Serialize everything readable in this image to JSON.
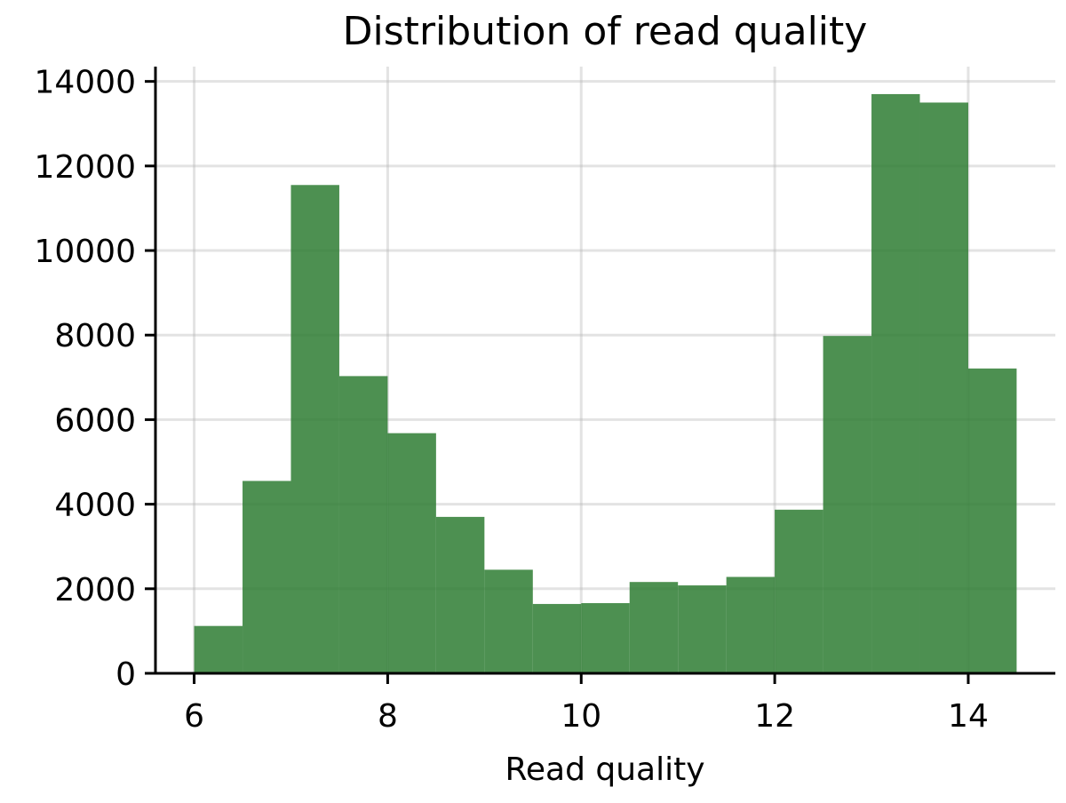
{
  "chart_data": {
    "type": "bar",
    "title": "Distribution of read quality",
    "xlabel": "Read quality",
    "ylabel": "",
    "bin_width": 0.5,
    "bins": [
      {
        "start": 6.0,
        "end": 6.5,
        "count": 1120
      },
      {
        "start": 6.5,
        "end": 7.0,
        "count": 4550
      },
      {
        "start": 7.0,
        "end": 7.5,
        "count": 11550
      },
      {
        "start": 7.5,
        "end": 8.0,
        "count": 7030
      },
      {
        "start": 8.0,
        "end": 8.5,
        "count": 5680
      },
      {
        "start": 8.5,
        "end": 9.0,
        "count": 3700
      },
      {
        "start": 9.0,
        "end": 9.5,
        "count": 2450
      },
      {
        "start": 9.5,
        "end": 10.0,
        "count": 1640
      },
      {
        "start": 10.0,
        "end": 10.5,
        "count": 1660
      },
      {
        "start": 10.5,
        "end": 11.0,
        "count": 2160
      },
      {
        "start": 11.0,
        "end": 11.5,
        "count": 2080
      },
      {
        "start": 11.5,
        "end": 12.0,
        "count": 2280
      },
      {
        "start": 12.0,
        "end": 12.5,
        "count": 3870
      },
      {
        "start": 12.5,
        "end": 13.0,
        "count": 7980
      },
      {
        "start": 13.0,
        "end": 13.5,
        "count": 13700
      },
      {
        "start": 13.5,
        "end": 14.0,
        "count": 13500
      },
      {
        "start": 14.0,
        "end": 14.5,
        "count": 7210
      }
    ],
    "xlim": [
      5.6,
      14.9
    ],
    "ylim": [
      0,
      14350
    ],
    "x_ticks": [
      6,
      8,
      10,
      12,
      14
    ],
    "y_ticks": [
      0,
      2000,
      4000,
      6000,
      8000,
      10000,
      12000,
      14000
    ],
    "x_tick_labels": [
      "6",
      "8",
      "10",
      "12",
      "14"
    ],
    "y_tick_labels": [
      "0",
      "2000",
      "4000",
      "6000",
      "8000",
      "10000",
      "12000",
      "14000"
    ],
    "grid": true,
    "legend": "none",
    "bar_color": "#2e7d32"
  }
}
